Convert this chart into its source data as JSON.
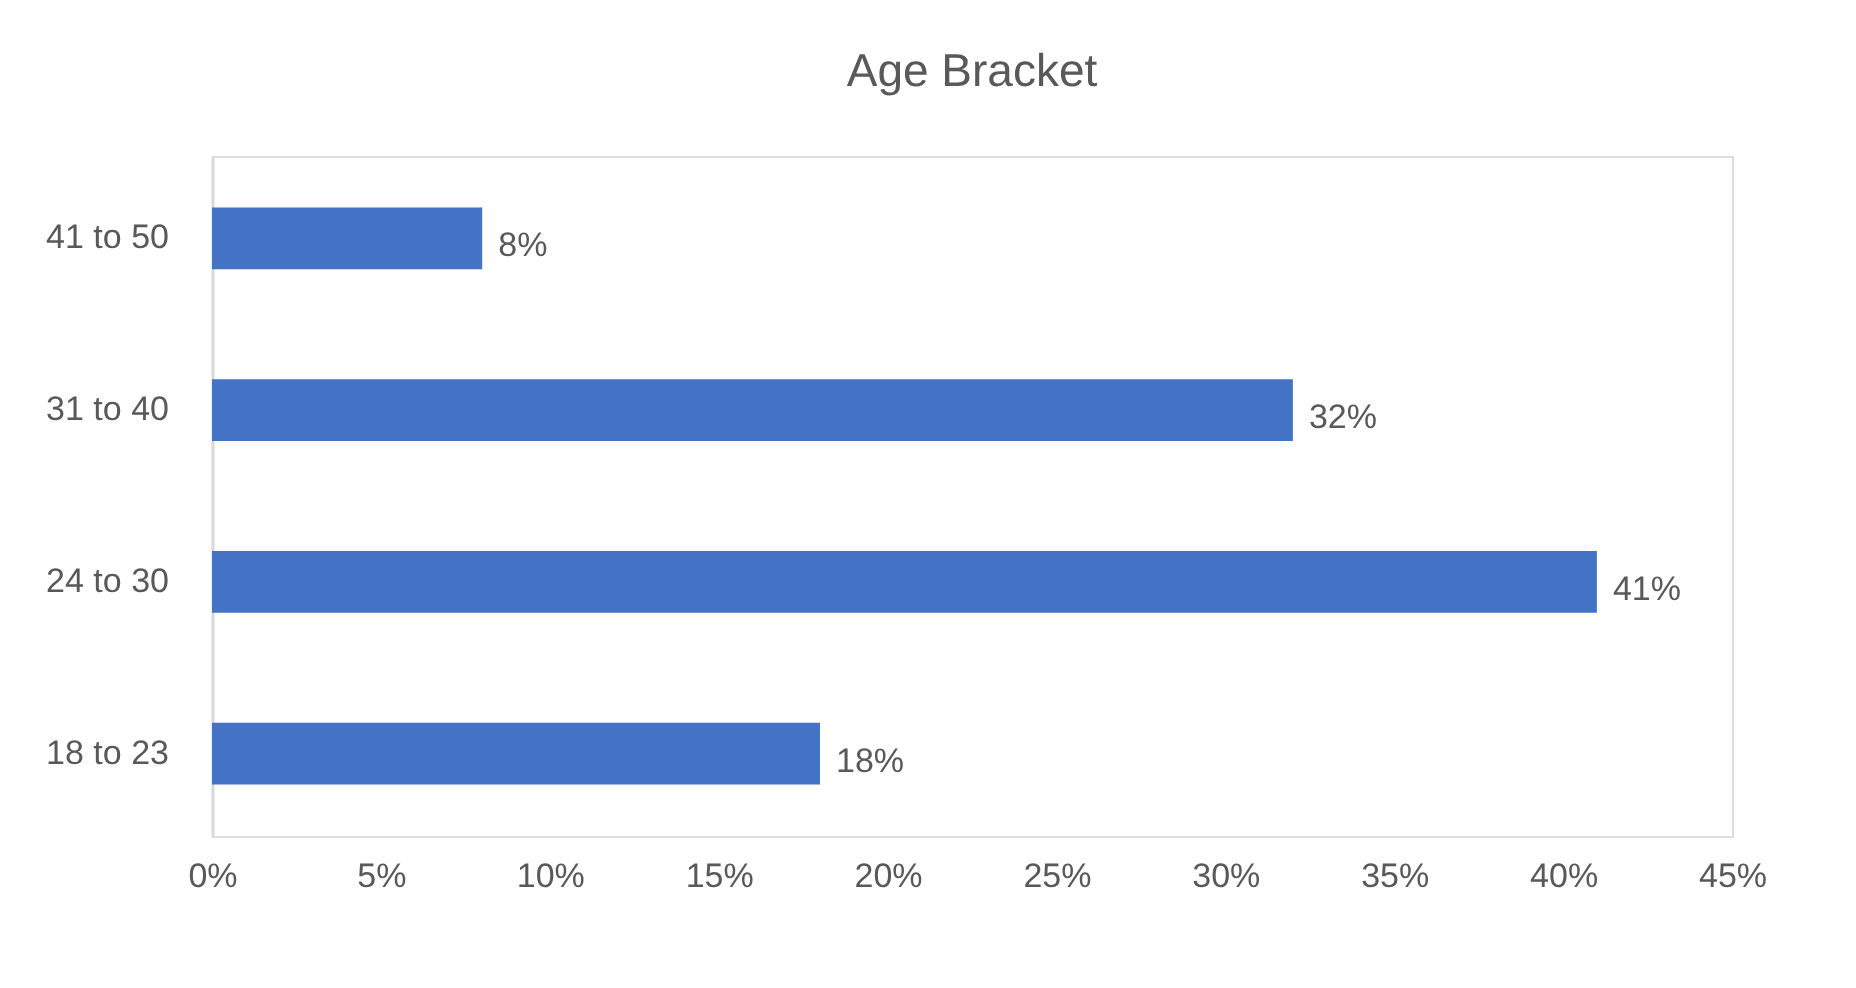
{
  "chart_data": {
    "type": "bar",
    "orientation": "horizontal",
    "title": "Age Bracket",
    "categories": [
      "41 to 50",
      "31 to 40",
      "24 to 30",
      "18 to 23"
    ],
    "values": [
      8,
      32,
      41,
      18
    ],
    "value_labels": [
      "8%",
      "32%",
      "41%",
      "18%"
    ],
    "color": "#4472c4",
    "xlim": [
      0,
      45
    ],
    "xticks": [
      {
        "value": 0,
        "label": "0%"
      },
      {
        "value": 5,
        "label": "5%"
      },
      {
        "value": 10,
        "label": "10%"
      },
      {
        "value": 15,
        "label": "15%"
      },
      {
        "value": 20,
        "label": "20%"
      },
      {
        "value": 25,
        "label": "25%"
      },
      {
        "value": 30,
        "label": "30%"
      },
      {
        "value": 35,
        "label": "35%"
      },
      {
        "value": 40,
        "label": "40%"
      },
      {
        "value": 45,
        "label": "45%"
      }
    ],
    "grid": false
  }
}
